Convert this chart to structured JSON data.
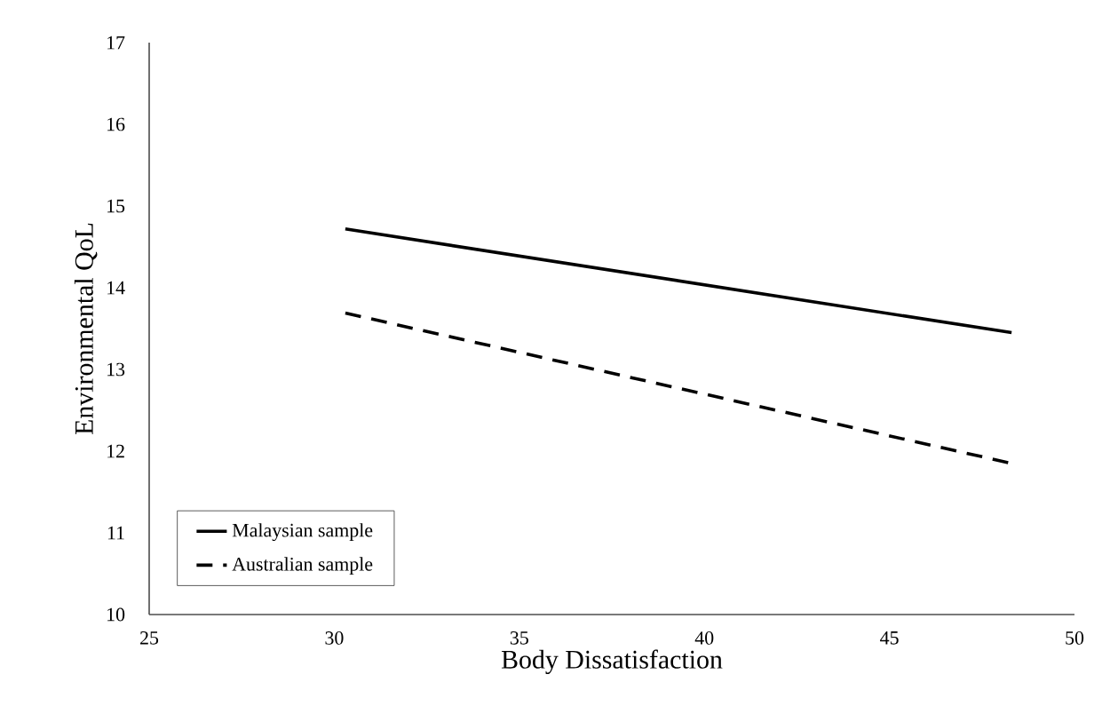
{
  "chart_data": {
    "type": "line",
    "xlabel": "Body Dissatisfaction",
    "ylabel": "Environmental QoL",
    "xlim": [
      25,
      50
    ],
    "xticks": [
      25,
      30,
      35,
      40,
      45,
      50
    ],
    "ylim": [
      10,
      17
    ],
    "yticks": [
      10,
      11,
      12,
      13,
      14,
      15,
      16,
      17
    ],
    "x": [
      30.3,
      48.3
    ],
    "grid": false,
    "legend": "bottom left",
    "marker": "none",
    "series": [
      {
        "name": "Malaysian sample",
        "color": "#000000",
        "values": [
          14.72,
          13.45
        ],
        "line_style": "solid"
      },
      {
        "name": "Australian sample",
        "color": "#000000",
        "values": [
          13.69,
          11.85
        ],
        "line_style": "dashed"
      }
    ]
  }
}
